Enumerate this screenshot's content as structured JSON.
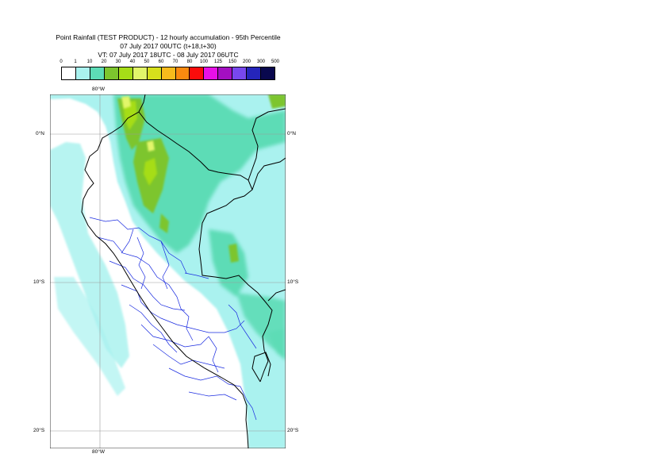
{
  "title": {
    "line1": "Point Rainfall (TEST PRODUCT) - 12 hourly accumulation - 95th Percentile",
    "line2": "07 July 2017 00UTC (t+18,t+30)",
    "line3": "VT: 07 July 2017 18UTC - 08 July 2017 06UTC"
  },
  "legend": {
    "labels": [
      "0",
      "1",
      "10",
      "20",
      "30",
      "40",
      "50",
      "60",
      "70",
      "80",
      "100",
      "125",
      "150",
      "200",
      "300",
      "500"
    ],
    "colors": [
      "#ffffff",
      "#aaf2ef",
      "#5ddcb6",
      "#7dc52e",
      "#a6dd17",
      "#e2f66a",
      "#d6e01c",
      "#f8bb1c",
      "#fb8a0f",
      "#fb0c0b",
      "#e810e8",
      "#a40fc2",
      "#7848ee",
      "#2525bb",
      "#09084e"
    ]
  },
  "map": {
    "lon_labels": {
      "top": "80°W",
      "bottom": "80°W"
    },
    "lat_labels": [
      "0°N",
      "10°S",
      "20°S"
    ]
  }
}
